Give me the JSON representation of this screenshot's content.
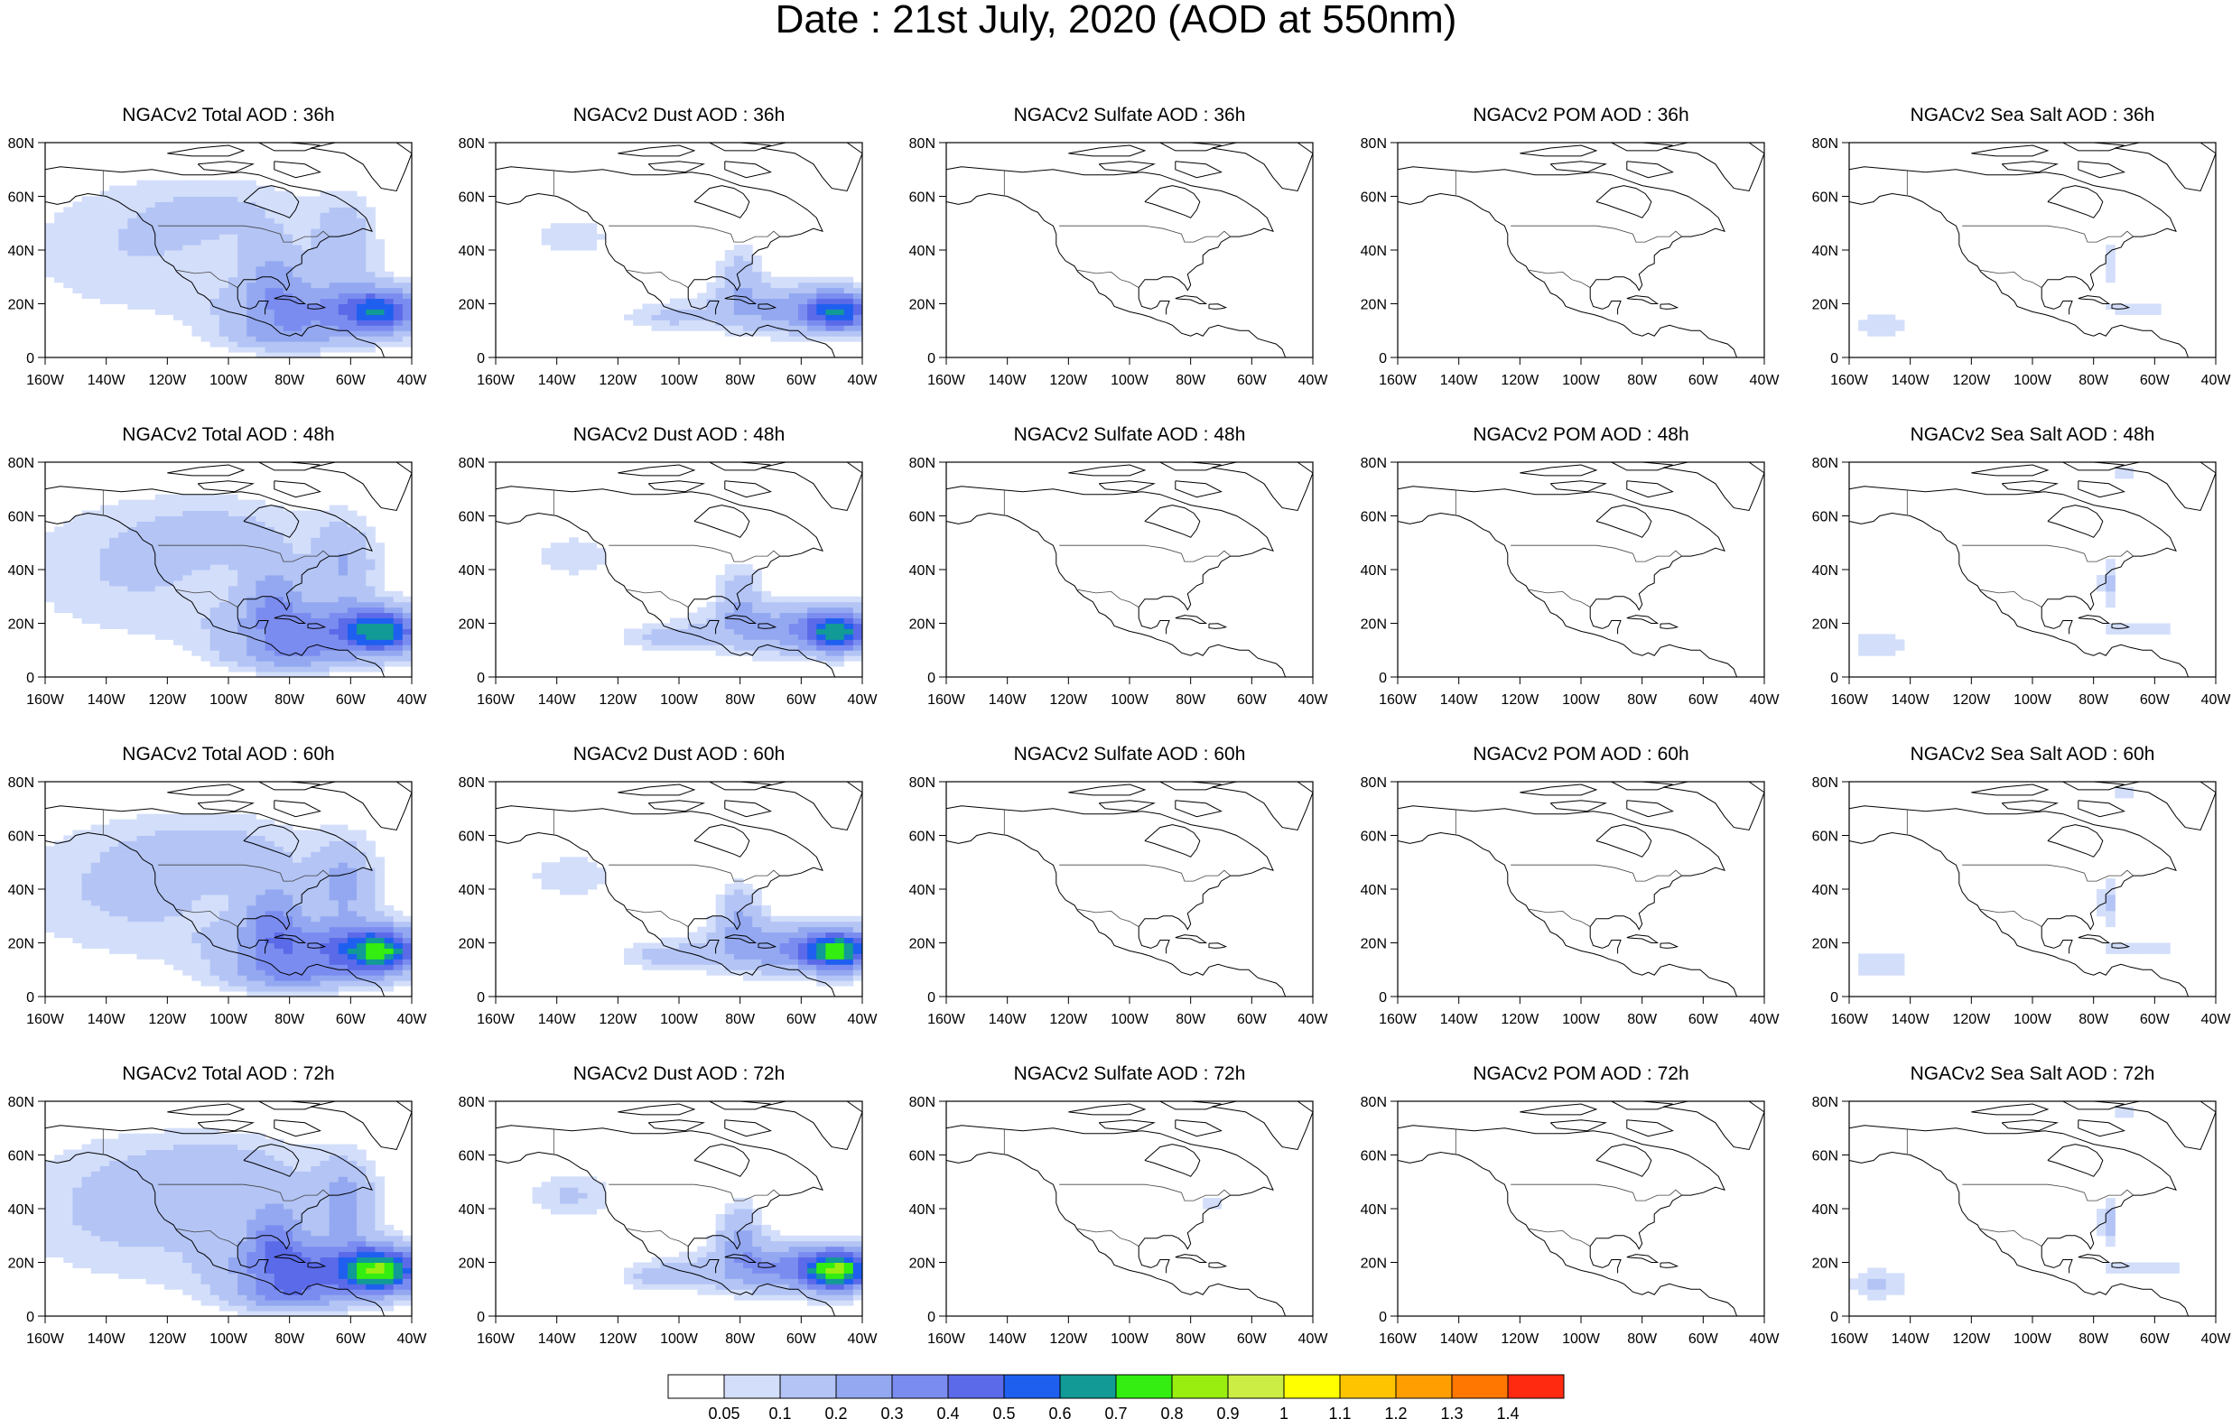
{
  "title": "Date : 21st July, 2020 (AOD at 550nm)",
  "panels": [
    {
      "title": "NGACv2 Total AOD : 36h",
      "field": "total",
      "lead": 36
    },
    {
      "title": "NGACv2 Dust AOD : 36h",
      "field": "dust",
      "lead": 36
    },
    {
      "title": "NGACv2 Sulfate AOD : 36h",
      "field": "sulfate",
      "lead": 36
    },
    {
      "title": "NGACv2 POM AOD : 36h",
      "field": "pom",
      "lead": 36
    },
    {
      "title": "NGACv2 Sea Salt AOD : 36h",
      "field": "seasalt",
      "lead": 36
    },
    {
      "title": "NGACv2 Total AOD : 48h",
      "field": "total",
      "lead": 48
    },
    {
      "title": "NGACv2 Dust AOD : 48h",
      "field": "dust",
      "lead": 48
    },
    {
      "title": "NGACv2 Sulfate AOD : 48h",
      "field": "sulfate",
      "lead": 48
    },
    {
      "title": "NGACv2 POM AOD : 48h",
      "field": "pom",
      "lead": 48
    },
    {
      "title": "NGACv2 Sea Salt AOD : 48h",
      "field": "seasalt",
      "lead": 48
    },
    {
      "title": "NGACv2 Total AOD : 60h",
      "field": "total",
      "lead": 60
    },
    {
      "title": "NGACv2 Dust AOD : 60h",
      "field": "dust",
      "lead": 60
    },
    {
      "title": "NGACv2 Sulfate AOD : 60h",
      "field": "sulfate",
      "lead": 60
    },
    {
      "title": "NGACv2 POM AOD : 60h",
      "field": "pom",
      "lead": 60
    },
    {
      "title": "NGACv2 Sea Salt AOD : 60h",
      "field": "seasalt",
      "lead": 60
    },
    {
      "title": "NGACv2 Total AOD : 72h",
      "field": "total",
      "lead": 72
    },
    {
      "title": "NGACv2 Dust AOD : 72h",
      "field": "dust",
      "lead": 72
    },
    {
      "title": "NGACv2 Sulfate AOD : 72h",
      "field": "sulfate",
      "lead": 72
    },
    {
      "title": "NGACv2 POM AOD : 72h",
      "field": "pom",
      "lead": 72
    },
    {
      "title": "NGACv2 Sea Salt  AOD : 72h",
      "field": "seasalt",
      "lead": 72
    }
  ],
  "map": {
    "lon_range": [
      -160,
      -40
    ],
    "lat_range": [
      0,
      80
    ],
    "lon_ticks": [
      "160W",
      "140W",
      "120W",
      "100W",
      "80W",
      "60W",
      "40W"
    ],
    "lat_ticks": [
      "0",
      "20N",
      "40N",
      "60N",
      "80N"
    ]
  },
  "colorbar": {
    "colors": [
      "#ffffff",
      "#d3defa",
      "#b3c4f5",
      "#93a8f0",
      "#7b8cf0",
      "#5a6ae8",
      "#1f5ff0",
      "#119a96",
      "#33ee10",
      "#99ee10",
      "#ccee44",
      "#ffff00",
      "#ffc400",
      "#ff9e00",
      "#ff7600",
      "#ff2a10"
    ],
    "labels": [
      "0.05",
      "0.1",
      "0.2",
      "0.3",
      "0.4",
      "0.5",
      "0.6",
      "0.7",
      "0.8",
      "0.9",
      "1",
      "1.1",
      "1.2",
      "1.3",
      "1.4"
    ]
  }
}
